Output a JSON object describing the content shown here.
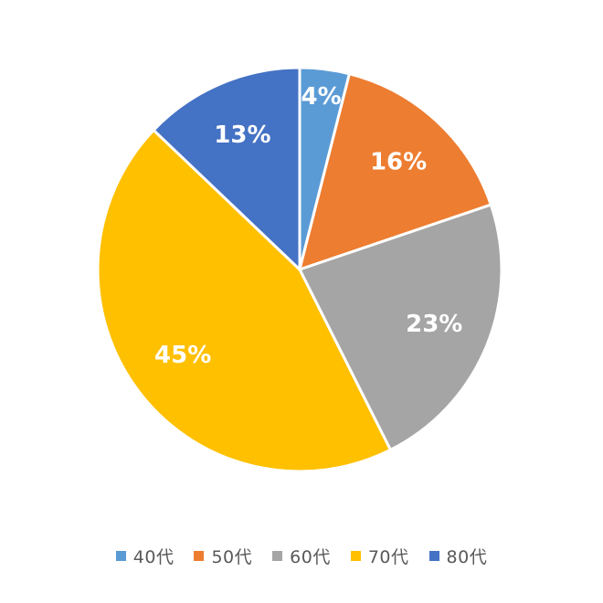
{
  "chart_data": {
    "type": "pie",
    "categories": [
      "40代",
      "50代",
      "60代",
      "70代",
      "80代"
    ],
    "values": [
      4,
      16,
      23,
      45,
      13
    ],
    "data_labels": [
      "4%",
      "16%",
      "23%",
      "45%",
      "13%"
    ],
    "colors": [
      "#5B9BD5",
      "#ED7D31",
      "#A5A5A5",
      "#FFC000",
      "#4472C4"
    ],
    "start_angle_deg": 0,
    "direction": "clockwise",
    "legend": "bottom"
  }
}
